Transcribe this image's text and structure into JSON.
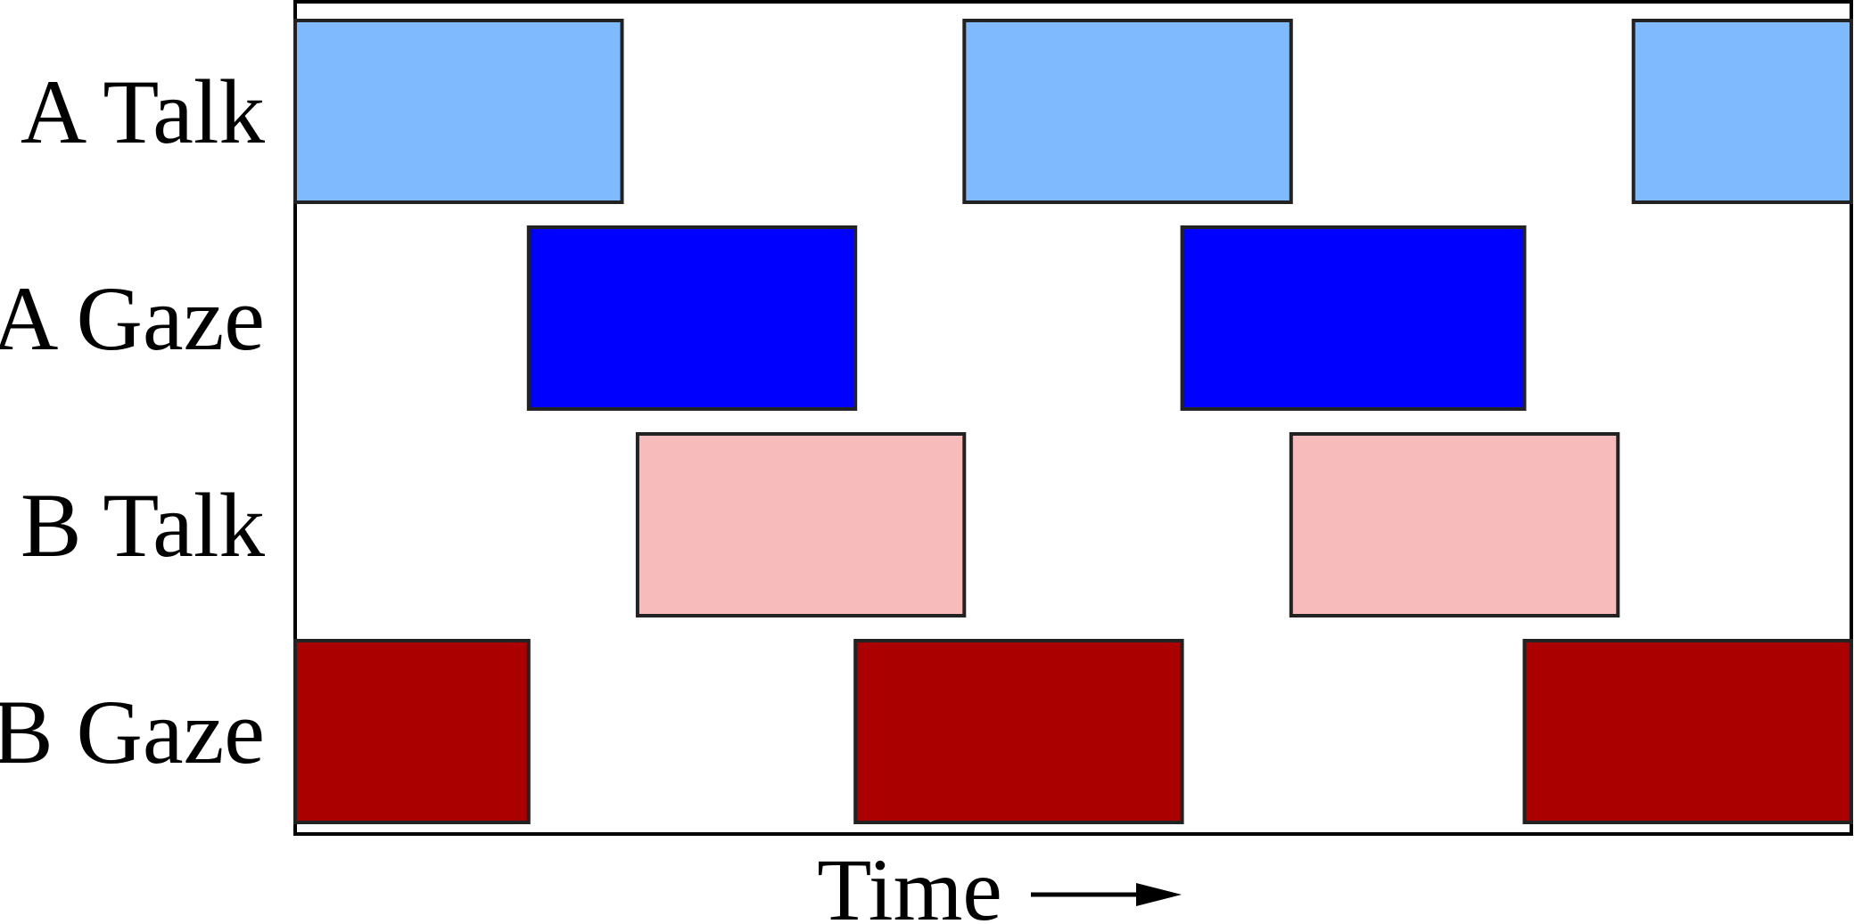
{
  "chart_data": {
    "type": "timeline",
    "rows": [
      {
        "label": "A Talk",
        "color": "#7fbaff",
        "segments": [
          [
            0.0,
            0.21
          ],
          [
            0.43,
            0.64
          ],
          [
            0.86,
            1.0
          ]
        ]
      },
      {
        "label": "A Gaze",
        "color": "#0000ff",
        "segments": [
          [
            0.15,
            0.36
          ],
          [
            0.57,
            0.79
          ]
        ]
      },
      {
        "label": "B Talk",
        "color": "#f8bbbb",
        "segments": [
          [
            0.22,
            0.43
          ],
          [
            0.64,
            0.85
          ]
        ]
      },
      {
        "label": "B Gaze",
        "color": "#aa0000",
        "segments": [
          [
            0.0,
            0.15
          ],
          [
            0.36,
            0.57
          ],
          [
            0.79,
            1.0
          ]
        ]
      }
    ],
    "xlabel": "Time",
    "arrow_icon": "right-arrow-icon"
  }
}
